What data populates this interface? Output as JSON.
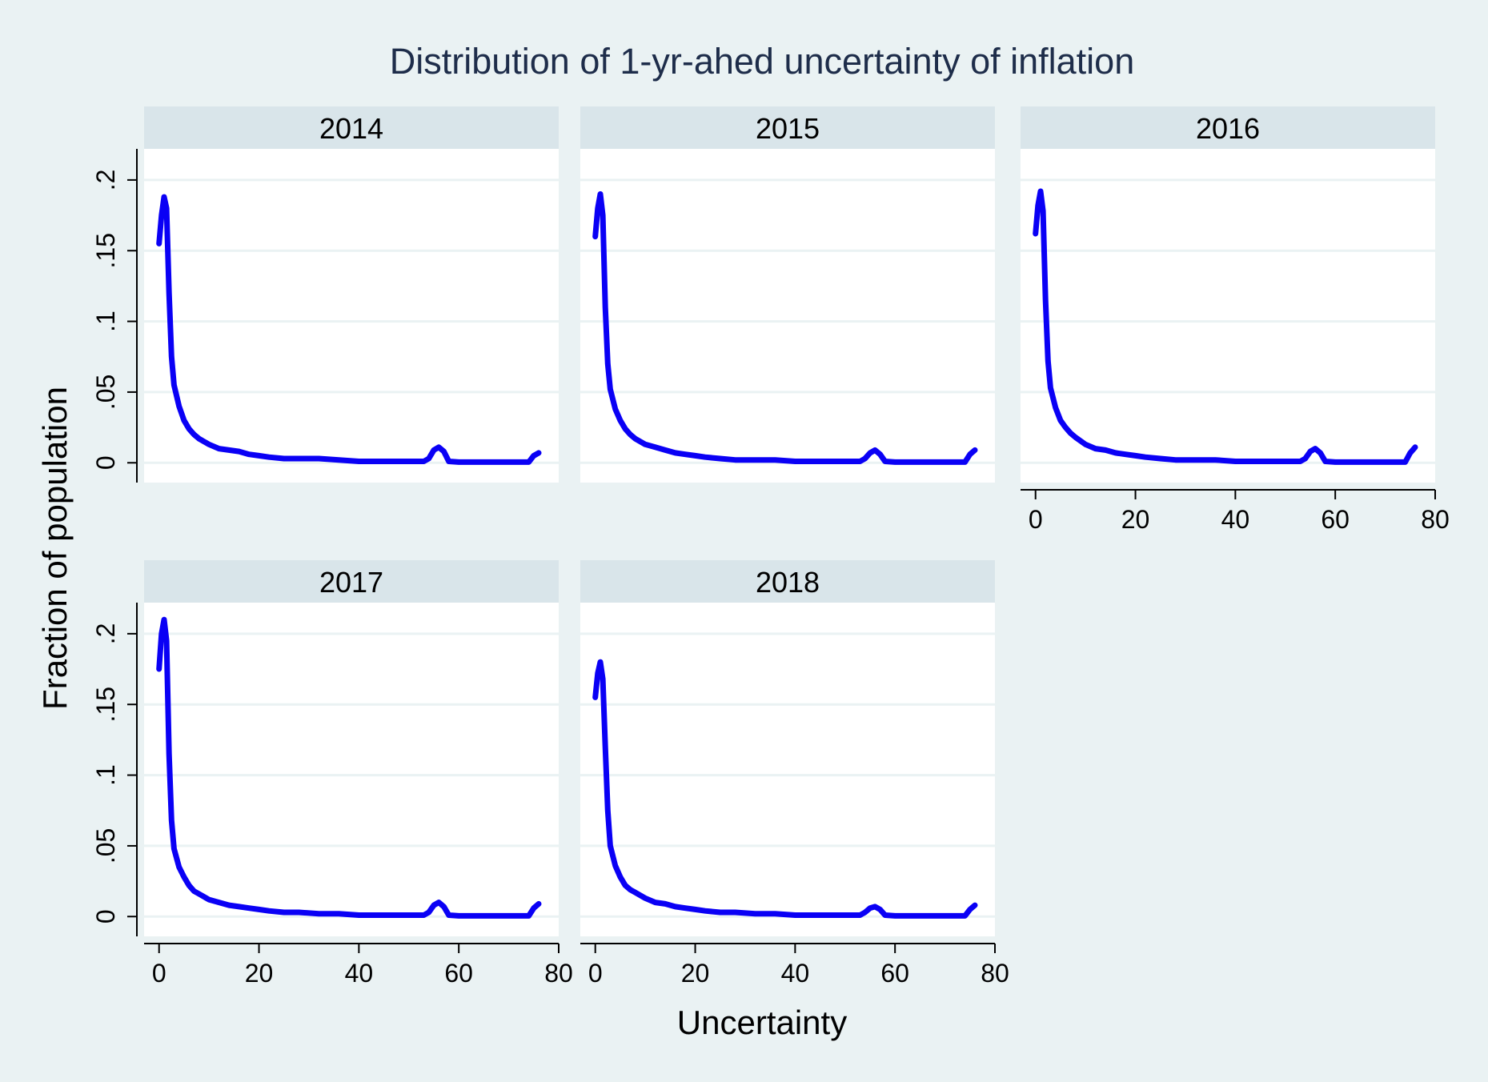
{
  "chart_data": {
    "type": "line",
    "title": "Distribution of 1-yr-ahed uncertainty of inflation",
    "xlabel": "Uncertainty",
    "ylabel": "Fraction of population",
    "xlim": [
      -3,
      80
    ],
    "ylim": [
      -0.014,
      0.222
    ],
    "xticks": [
      0,
      20,
      40,
      60,
      80
    ],
    "xtick_labels": [
      "0",
      "20",
      "40",
      "60",
      "80"
    ],
    "yticks": [
      0,
      0.05,
      0.1,
      0.15,
      0.2
    ],
    "ytick_labels": [
      "0",
      ".05",
      ".1",
      ".15",
      ".2"
    ],
    "grid": true,
    "layout": "3x2 small multiples by year",
    "colors": {
      "line": "#0a00f5",
      "panel_header": "#d9e5ea",
      "background": "#eaf2f3",
      "plot_bg": "#ffffff",
      "grid": "#eaf2f3"
    },
    "series": [
      {
        "name": "2014",
        "x": [
          0,
          0.5,
          1,
          1.5,
          2,
          2.5,
          3,
          4,
          5,
          6,
          7,
          8,
          10,
          12,
          14,
          16,
          18,
          20,
          22,
          25,
          28,
          32,
          36,
          40,
          44,
          48,
          50,
          53,
          54,
          55,
          56,
          57,
          58,
          60,
          65,
          70,
          74,
          75,
          76
        ],
        "y": [
          0.155,
          0.175,
          0.188,
          0.18,
          0.12,
          0.075,
          0.055,
          0.04,
          0.03,
          0.024,
          0.02,
          0.017,
          0.013,
          0.01,
          0.009,
          0.008,
          0.006,
          0.005,
          0.004,
          0.003,
          0.003,
          0.003,
          0.002,
          0.001,
          0.001,
          0.001,
          0.001,
          0.001,
          0.003,
          0.009,
          0.011,
          0.008,
          0.001,
          0.0005,
          0.0005,
          0.0005,
          0.0005,
          0.005,
          0.007
        ]
      },
      {
        "name": "2015",
        "x": [
          0,
          0.5,
          1,
          1.5,
          2,
          2.5,
          3,
          4,
          5,
          6,
          7,
          8,
          10,
          12,
          14,
          16,
          18,
          20,
          22,
          25,
          28,
          32,
          36,
          40,
          44,
          48,
          50,
          53,
          54,
          55,
          56,
          57,
          58,
          60,
          65,
          70,
          74,
          75,
          76
        ],
        "y": [
          0.16,
          0.18,
          0.19,
          0.175,
          0.11,
          0.07,
          0.052,
          0.038,
          0.03,
          0.024,
          0.02,
          0.017,
          0.013,
          0.011,
          0.009,
          0.007,
          0.006,
          0.005,
          0.004,
          0.003,
          0.002,
          0.002,
          0.002,
          0.001,
          0.001,
          0.001,
          0.001,
          0.001,
          0.003,
          0.007,
          0.009,
          0.006,
          0.001,
          0.0005,
          0.0005,
          0.0005,
          0.0005,
          0.006,
          0.009
        ]
      },
      {
        "name": "2016",
        "x": [
          0,
          0.5,
          1,
          1.5,
          2,
          2.5,
          3,
          4,
          5,
          6,
          7,
          8,
          10,
          12,
          14,
          16,
          18,
          20,
          22,
          25,
          28,
          32,
          36,
          40,
          44,
          48,
          50,
          53,
          54,
          55,
          56,
          57,
          58,
          60,
          65,
          70,
          74,
          75,
          76
        ],
        "y": [
          0.162,
          0.182,
          0.192,
          0.178,
          0.115,
          0.072,
          0.053,
          0.039,
          0.03,
          0.025,
          0.021,
          0.018,
          0.013,
          0.01,
          0.009,
          0.007,
          0.006,
          0.005,
          0.004,
          0.003,
          0.002,
          0.002,
          0.002,
          0.001,
          0.001,
          0.001,
          0.001,
          0.001,
          0.003,
          0.008,
          0.01,
          0.007,
          0.001,
          0.0005,
          0.0005,
          0.0005,
          0.0005,
          0.007,
          0.011
        ]
      },
      {
        "name": "2017",
        "x": [
          0,
          0.5,
          1,
          1.5,
          2,
          2.5,
          3,
          4,
          5,
          6,
          7,
          8,
          10,
          12,
          14,
          16,
          18,
          20,
          22,
          25,
          28,
          32,
          36,
          40,
          44,
          48,
          50,
          53,
          54,
          55,
          56,
          57,
          58,
          60,
          65,
          70,
          74,
          75,
          76
        ],
        "y": [
          0.175,
          0.2,
          0.21,
          0.195,
          0.115,
          0.068,
          0.048,
          0.035,
          0.028,
          0.022,
          0.018,
          0.016,
          0.012,
          0.01,
          0.008,
          0.007,
          0.006,
          0.005,
          0.004,
          0.003,
          0.003,
          0.002,
          0.002,
          0.001,
          0.001,
          0.001,
          0.001,
          0.001,
          0.003,
          0.008,
          0.01,
          0.007,
          0.001,
          0.0005,
          0.0005,
          0.0005,
          0.0005,
          0.006,
          0.009
        ]
      },
      {
        "name": "2018",
        "x": [
          0,
          0.5,
          1,
          1.5,
          2,
          2.5,
          3,
          4,
          5,
          6,
          7,
          8,
          10,
          12,
          14,
          16,
          18,
          20,
          22,
          25,
          28,
          32,
          36,
          40,
          44,
          48,
          50,
          53,
          54,
          55,
          56,
          57,
          58,
          60,
          65,
          70,
          74,
          75,
          76
        ],
        "y": [
          0.155,
          0.172,
          0.18,
          0.168,
          0.12,
          0.075,
          0.05,
          0.036,
          0.028,
          0.022,
          0.019,
          0.017,
          0.013,
          0.01,
          0.009,
          0.007,
          0.006,
          0.005,
          0.004,
          0.003,
          0.003,
          0.002,
          0.002,
          0.001,
          0.001,
          0.001,
          0.001,
          0.001,
          0.003,
          0.006,
          0.007,
          0.005,
          0.001,
          0.0005,
          0.0005,
          0.0005,
          0.0005,
          0.005,
          0.008
        ]
      }
    ]
  }
}
